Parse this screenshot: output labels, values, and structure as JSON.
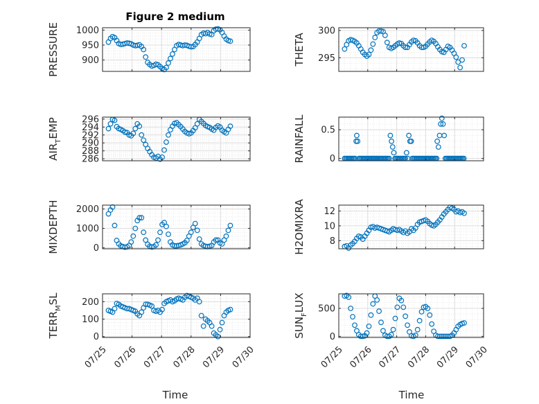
{
  "figure": {
    "title": "Figure 2 medium"
  },
  "colors": {
    "marker": "#0072bd",
    "axis": "#262626",
    "grid": "#dcdcdc"
  },
  "chart_data": [
    {
      "type": "scatter",
      "ylabel": "PRESSURE",
      "ylim": [
        862,
        1008
      ],
      "yticks": [
        900,
        950,
        1000
      ],
      "xtick_labels_shown": false,
      "x": [
        0.2,
        0.27,
        0.34,
        0.41,
        0.48,
        0.55,
        0.62,
        0.69,
        0.76,
        0.83,
        0.9,
        0.97,
        1.04,
        1.11,
        1.18,
        1.25,
        1.32,
        1.39,
        1.46,
        1.53,
        1.6,
        1.67,
        1.74,
        1.81,
        1.88,
        1.95,
        2.02,
        2.09,
        2.16,
        2.23,
        2.3,
        2.37,
        2.44,
        2.51,
        2.58,
        2.65,
        2.72,
        2.79,
        2.86,
        2.93,
        3.0,
        3.07,
        3.14,
        3.21,
        3.28,
        3.35,
        3.42,
        3.49,
        3.56,
        3.63,
        3.7,
        3.77,
        3.84,
        3.91,
        3.98,
        4.05,
        4.12,
        4.19,
        4.26,
        4.33
      ],
      "y": [
        960,
        972,
        978,
        975,
        965,
        955,
        952,
        953,
        955,
        957,
        956,
        954,
        950,
        948,
        949,
        951,
        945,
        935,
        910,
        892,
        885,
        880,
        882,
        886,
        884,
        878,
        872,
        868,
        875,
        890,
        905,
        920,
        935,
        948,
        952,
        950,
        948,
        950,
        949,
        946,
        944,
        945,
        952,
        960,
        972,
        985,
        990,
        988,
        992,
        987,
        985,
        998,
        1003,
        1004,
        1001,
        992,
        980,
        970,
        965,
        963
      ]
    },
    {
      "type": "scatter",
      "ylabel": "THETA",
      "ylim": [
        292.5,
        300.5
      ],
      "yticks": [
        295,
        300
      ],
      "xtick_labels_shown": false,
      "x": [
        0.2,
        0.27,
        0.34,
        0.41,
        0.48,
        0.55,
        0.62,
        0.69,
        0.76,
        0.83,
        0.9,
        0.97,
        1.04,
        1.11,
        1.18,
        1.25,
        1.32,
        1.39,
        1.46,
        1.53,
        1.6,
        1.67,
        1.74,
        1.81,
        1.88,
        1.95,
        2.02,
        2.09,
        2.16,
        2.23,
        2.3,
        2.37,
        2.44,
        2.51,
        2.58,
        2.65,
        2.72,
        2.79,
        2.86,
        2.93,
        3.0,
        3.07,
        3.14,
        3.21,
        3.28,
        3.35,
        3.42,
        3.49,
        3.56,
        3.63,
        3.7,
        3.77,
        3.84,
        3.91,
        3.98,
        4.05,
        4.12,
        4.19,
        4.26,
        4.33
      ],
      "y": [
        296.6,
        297.4,
        298.1,
        298.3,
        298.2,
        298.0,
        297.7,
        297.2,
        296.6,
        296.0,
        295.6,
        295.3,
        295.6,
        296.4,
        297.5,
        298.7,
        299.6,
        299.9,
        299.9,
        299.8,
        299.1,
        297.8,
        296.9,
        296.7,
        296.9,
        297.2,
        297.5,
        297.7,
        297.6,
        297.2,
        296.9,
        296.9,
        297.4,
        297.9,
        298.2,
        298.1,
        297.7,
        297.2,
        296.9,
        296.9,
        297.1,
        297.5,
        297.9,
        298.2,
        298.0,
        297.6,
        297.0,
        296.5,
        296.1,
        296.0,
        296.5,
        297.1,
        296.9,
        296.4,
        295.8,
        295.1,
        294.2,
        293.2,
        294.6,
        297.2
      ]
    },
    {
      "type": "scatter",
      "ylabel": "AIR_TEMP",
      "ylim": [
        285.5,
        296.5
      ],
      "yticks": [
        286,
        288,
        290,
        292,
        294,
        296
      ],
      "xtick_labels_shown": false,
      "x": [
        0.2,
        0.27,
        0.34,
        0.41,
        0.48,
        0.55,
        0.62,
        0.69,
        0.76,
        0.83,
        0.9,
        0.97,
        1.04,
        1.11,
        1.18,
        1.25,
        1.32,
        1.39,
        1.46,
        1.53,
        1.6,
        1.67,
        1.74,
        1.81,
        1.88,
        1.95,
        2.02,
        2.09,
        2.16,
        2.23,
        2.3,
        2.37,
        2.44,
        2.51,
        2.58,
        2.65,
        2.72,
        2.79,
        2.86,
        2.93,
        3.0,
        3.07,
        3.14,
        3.21,
        3.28,
        3.35,
        3.42,
        3.49,
        3.56,
        3.63,
        3.7,
        3.77,
        3.84,
        3.91,
        3.98,
        4.05,
        4.12,
        4.19,
        4.26,
        4.33
      ],
      "y": [
        293.6,
        294.8,
        295.9,
        295.7,
        294.1,
        293.6,
        293.4,
        293.1,
        292.7,
        292.6,
        292.0,
        291.8,
        292.4,
        293.6,
        294.8,
        294.2,
        292.0,
        290.7,
        289.6,
        288.6,
        287.8,
        287.0,
        286.4,
        286.2,
        286.6,
        285.9,
        286.4,
        288.2,
        290.2,
        292.0,
        293.3,
        294.2,
        294.9,
        295.1,
        294.6,
        294.1,
        293.5,
        292.9,
        292.5,
        292.3,
        292.5,
        293.1,
        293.8,
        294.8,
        295.9,
        295.4,
        294.9,
        294.4,
        294.1,
        293.9,
        293.5,
        293.2,
        293.9,
        294.3,
        294.0,
        293.2,
        292.8,
        292.5,
        293.4,
        294.2
      ]
    },
    {
      "type": "scatter",
      "ylabel": "RAINFALL",
      "ylim": [
        -0.04,
        0.72
      ],
      "yticks": [
        0,
        0.5
      ],
      "xtick_labels_shown": false,
      "x": [
        0.2,
        0.24,
        0.28,
        0.32,
        0.36,
        0.4,
        0.44,
        0.48,
        0.52,
        0.56,
        0.6,
        0.62,
        0.65,
        0.7,
        0.74,
        0.78,
        0.82,
        0.86,
        0.9,
        0.94,
        0.98,
        1.02,
        1.06,
        1.1,
        1.14,
        1.18,
        1.2,
        1.24,
        1.28,
        1.3,
        1.34,
        1.38,
        1.42,
        1.46,
        1.5,
        1.54,
        1.58,
        1.62,
        1.66,
        1.7,
        1.74,
        1.78,
        1.82,
        1.86,
        1.9,
        1.94,
        1.98,
        2.02,
        2.06,
        2.1,
        2.14,
        2.18,
        2.22,
        2.26,
        2.3,
        2.34,
        2.38,
        2.42,
        2.46,
        2.5,
        2.54,
        2.58,
        2.62,
        2.66,
        2.7,
        2.74,
        2.78,
        2.82,
        2.86,
        2.9,
        2.94,
        2.98,
        3.02,
        3.05,
        3.08,
        3.1,
        3.14,
        3.18,
        3.22,
        3.26,
        3.3,
        3.34,
        3.38,
        3.4,
        3.44,
        3.48,
        3.52,
        3.56,
        3.6,
        3.64,
        3.68,
        3.72,
        3.76,
        3.8,
        3.84,
        3.88,
        3.92,
        3.96,
        4.0,
        4.04,
        4.08,
        4.12,
        4.16,
        4.2,
        4.24,
        4.28,
        4.32
      ],
      "y": [
        0,
        0,
        0,
        0,
        0,
        0,
        0,
        0,
        0,
        0,
        0.3,
        0.4,
        0.3,
        0,
        0,
        0,
        0,
        0,
        0,
        0,
        0,
        0,
        0,
        0,
        0,
        0,
        0,
        0,
        0,
        0,
        0,
        0,
        0,
        0,
        0,
        0,
        0,
        0,
        0,
        0,
        0,
        0.4,
        0.3,
        0.2,
        0.1,
        0,
        0,
        0,
        0,
        0,
        0,
        0,
        0,
        0,
        0,
        0.1,
        0,
        0.4,
        0.3,
        0.3,
        0,
        0,
        0,
        0,
        0,
        0,
        0,
        0,
        0,
        0,
        0,
        0,
        0,
        0,
        0,
        0,
        0,
        0,
        0,
        0,
        0,
        0,
        0,
        0.3,
        0.2,
        0.4,
        0.6,
        0.7,
        0.6,
        0.4,
        0,
        0,
        0,
        0,
        0,
        0,
        0,
        0,
        0,
        0,
        0,
        0,
        0,
        0,
        0,
        0,
        0
      ]
    },
    {
      "type": "scatter",
      "ylabel": "MIXDEPTH",
      "ylim": [
        -50,
        2200
      ],
      "yticks": [
        0,
        1000,
        2000
      ],
      "xtick_labels_shown": false,
      "x": [
        0.2,
        0.27,
        0.34,
        0.41,
        0.48,
        0.55,
        0.62,
        0.69,
        0.76,
        0.83,
        0.9,
        0.97,
        1.04,
        1.11,
        1.18,
        1.25,
        1.32,
        1.39,
        1.46,
        1.53,
        1.6,
        1.67,
        1.74,
        1.81,
        1.88,
        1.95,
        2.02,
        2.09,
        2.16,
        2.23,
        2.3,
        2.37,
        2.44,
        2.51,
        2.58,
        2.65,
        2.72,
        2.79,
        2.86,
        2.93,
        3.0,
        3.07,
        3.14,
        3.21,
        3.28,
        3.35,
        3.42,
        3.49,
        3.56,
        3.63,
        3.7,
        3.77,
        3.84,
        3.91,
        3.98,
        4.05,
        4.12,
        4.19,
        4.26,
        4.33
      ],
      "y": [
        1750,
        1950,
        2100,
        1150,
        380,
        200,
        100,
        60,
        30,
        50,
        120,
        300,
        600,
        1000,
        1400,
        1550,
        1550,
        800,
        400,
        180,
        80,
        40,
        60,
        150,
        400,
        800,
        1200,
        1300,
        1100,
        700,
        300,
        150,
        100,
        100,
        120,
        150,
        200,
        260,
        380,
        600,
        800,
        1050,
        1250,
        900,
        450,
        200,
        120,
        80,
        60,
        80,
        120,
        300,
        400,
        400,
        250,
        200,
        400,
        600,
        900,
        1150
      ]
    },
    {
      "type": "scatter",
      "ylabel": "H2OMIXRA",
      "ylim": [
        6.9,
        12.8
      ],
      "yticks": [
        8,
        10,
        12
      ],
      "xtick_labels_shown": false,
      "x": [
        0.2,
        0.27,
        0.34,
        0.41,
        0.48,
        0.55,
        0.62,
        0.69,
        0.76,
        0.83,
        0.9,
        0.97,
        1.04,
        1.11,
        1.18,
        1.25,
        1.32,
        1.39,
        1.46,
        1.53,
        1.6,
        1.67,
        1.74,
        1.81,
        1.88,
        1.95,
        2.02,
        2.09,
        2.16,
        2.23,
        2.3,
        2.37,
        2.44,
        2.51,
        2.58,
        2.65,
        2.72,
        2.79,
        2.86,
        2.93,
        3.0,
        3.07,
        3.14,
        3.21,
        3.28,
        3.35,
        3.42,
        3.49,
        3.56,
        3.63,
        3.7,
        3.77,
        3.84,
        3.91,
        3.98,
        4.05,
        4.12,
        4.19,
        4.26,
        4.33
      ],
      "y": [
        7.2,
        7.3,
        7.0,
        7.4,
        7.6,
        7.9,
        8.3,
        8.6,
        8.5,
        8.2,
        8.6,
        9.0,
        9.4,
        9.8,
        9.9,
        9.7,
        9.8,
        9.7,
        9.6,
        9.5,
        9.4,
        9.3,
        9.2,
        9.4,
        9.6,
        9.5,
        9.4,
        9.5,
        9.3,
        9.1,
        9.3,
        9.0,
        9.2,
        9.6,
        9.4,
        9.7,
        10.2,
        10.5,
        10.6,
        10.7,
        10.8,
        10.6,
        10.3,
        10.1,
        10.0,
        10.2,
        10.5,
        10.8,
        11.2,
        11.6,
        11.9,
        12.2,
        12.5,
        12.4,
        12.2,
        11.9,
        12.0,
        11.8,
        11.9,
        11.7
      ]
    },
    {
      "type": "scatter",
      "ylabel": "TERR_MSL",
      "ylim": [
        -5,
        245
      ],
      "yticks": [
        0,
        100,
        200
      ],
      "xtick_labels_shown": true,
      "x": [
        0.2,
        0.27,
        0.34,
        0.41,
        0.48,
        0.55,
        0.62,
        0.69,
        0.76,
        0.83,
        0.9,
        0.97,
        1.04,
        1.11,
        1.18,
        1.25,
        1.32,
        1.39,
        1.46,
        1.53,
        1.6,
        1.67,
        1.74,
        1.81,
        1.88,
        1.95,
        2.02,
        2.09,
        2.16,
        2.23,
        2.3,
        2.37,
        2.44,
        2.51,
        2.58,
        2.65,
        2.72,
        2.79,
        2.86,
        2.93,
        3.0,
        3.07,
        3.14,
        3.21,
        3.28,
        3.35,
        3.42,
        3.49,
        3.56,
        3.63,
        3.7,
        3.77,
        3.84,
        3.91,
        3.98,
        4.05,
        4.12,
        4.19,
        4.26,
        4.33
      ],
      "y": [
        150,
        145,
        140,
        160,
        190,
        185,
        175,
        170,
        165,
        160,
        160,
        155,
        150,
        145,
        130,
        120,
        140,
        165,
        185,
        185,
        180,
        175,
        150,
        145,
        150,
        140,
        155,
        190,
        200,
        205,
        210,
        200,
        205,
        215,
        220,
        215,
        210,
        225,
        235,
        230,
        225,
        220,
        210,
        220,
        200,
        120,
        60,
        100,
        90,
        80,
        60,
        20,
        10,
        0,
        40,
        80,
        120,
        140,
        150,
        155
      ]
    },
    {
      "type": "scatter",
      "ylabel": "SUN_FLUX",
      "ylim": [
        -20,
        760
      ],
      "yticks": [
        0,
        500
      ],
      "xtick_labels_shown": true,
      "x": [
        0.2,
        0.27,
        0.34,
        0.41,
        0.48,
        0.55,
        0.62,
        0.69,
        0.76,
        0.83,
        0.9,
        0.97,
        1.04,
        1.11,
        1.18,
        1.25,
        1.32,
        1.39,
        1.46,
        1.53,
        1.6,
        1.67,
        1.74,
        1.81,
        1.88,
        1.95,
        2.02,
        2.09,
        2.16,
        2.23,
        2.3,
        2.37,
        2.44,
        2.51,
        2.58,
        2.65,
        2.72,
        2.79,
        2.86,
        2.93,
        3.0,
        3.07,
        3.14,
        3.21,
        3.28,
        3.35,
        3.42,
        3.49,
        3.56,
        3.63,
        3.7,
        3.77,
        3.84,
        3.91,
        3.98,
        4.05,
        4.12,
        4.19,
        4.26,
        4.33
      ],
      "y": [
        720,
        730,
        700,
        500,
        350,
        200,
        100,
        30,
        0,
        0,
        10,
        60,
        180,
        380,
        580,
        720,
        650,
        450,
        250,
        100,
        20,
        0,
        0,
        30,
        120,
        320,
        520,
        680,
        640,
        520,
        360,
        200,
        80,
        10,
        0,
        20,
        120,
        280,
        440,
        520,
        530,
        500,
        380,
        220,
        90,
        20,
        0,
        0,
        0,
        0,
        0,
        0,
        0,
        20,
        60,
        120,
        180,
        210,
        230,
        240
      ]
    }
  ],
  "axes": {
    "x_tick_labels": [
      "07/25",
      "07/26",
      "07/27",
      "07/28",
      "07/29",
      "07/30"
    ],
    "x_values": [
      0,
      1,
      2,
      3,
      4,
      5
    ],
    "xlim": [
      0,
      5
    ],
    "xlabel": "Time"
  },
  "ylabel_parts": {
    "air_temp": {
      "main": "AIR",
      "sub": "T",
      "rest": "EMP"
    },
    "terr_msl": {
      "main": "TERR",
      "sub": "M",
      "rest": "SL"
    },
    "sun_flux": {
      "main": "SUN",
      "sub": "F",
      "rest": "LUX"
    }
  }
}
